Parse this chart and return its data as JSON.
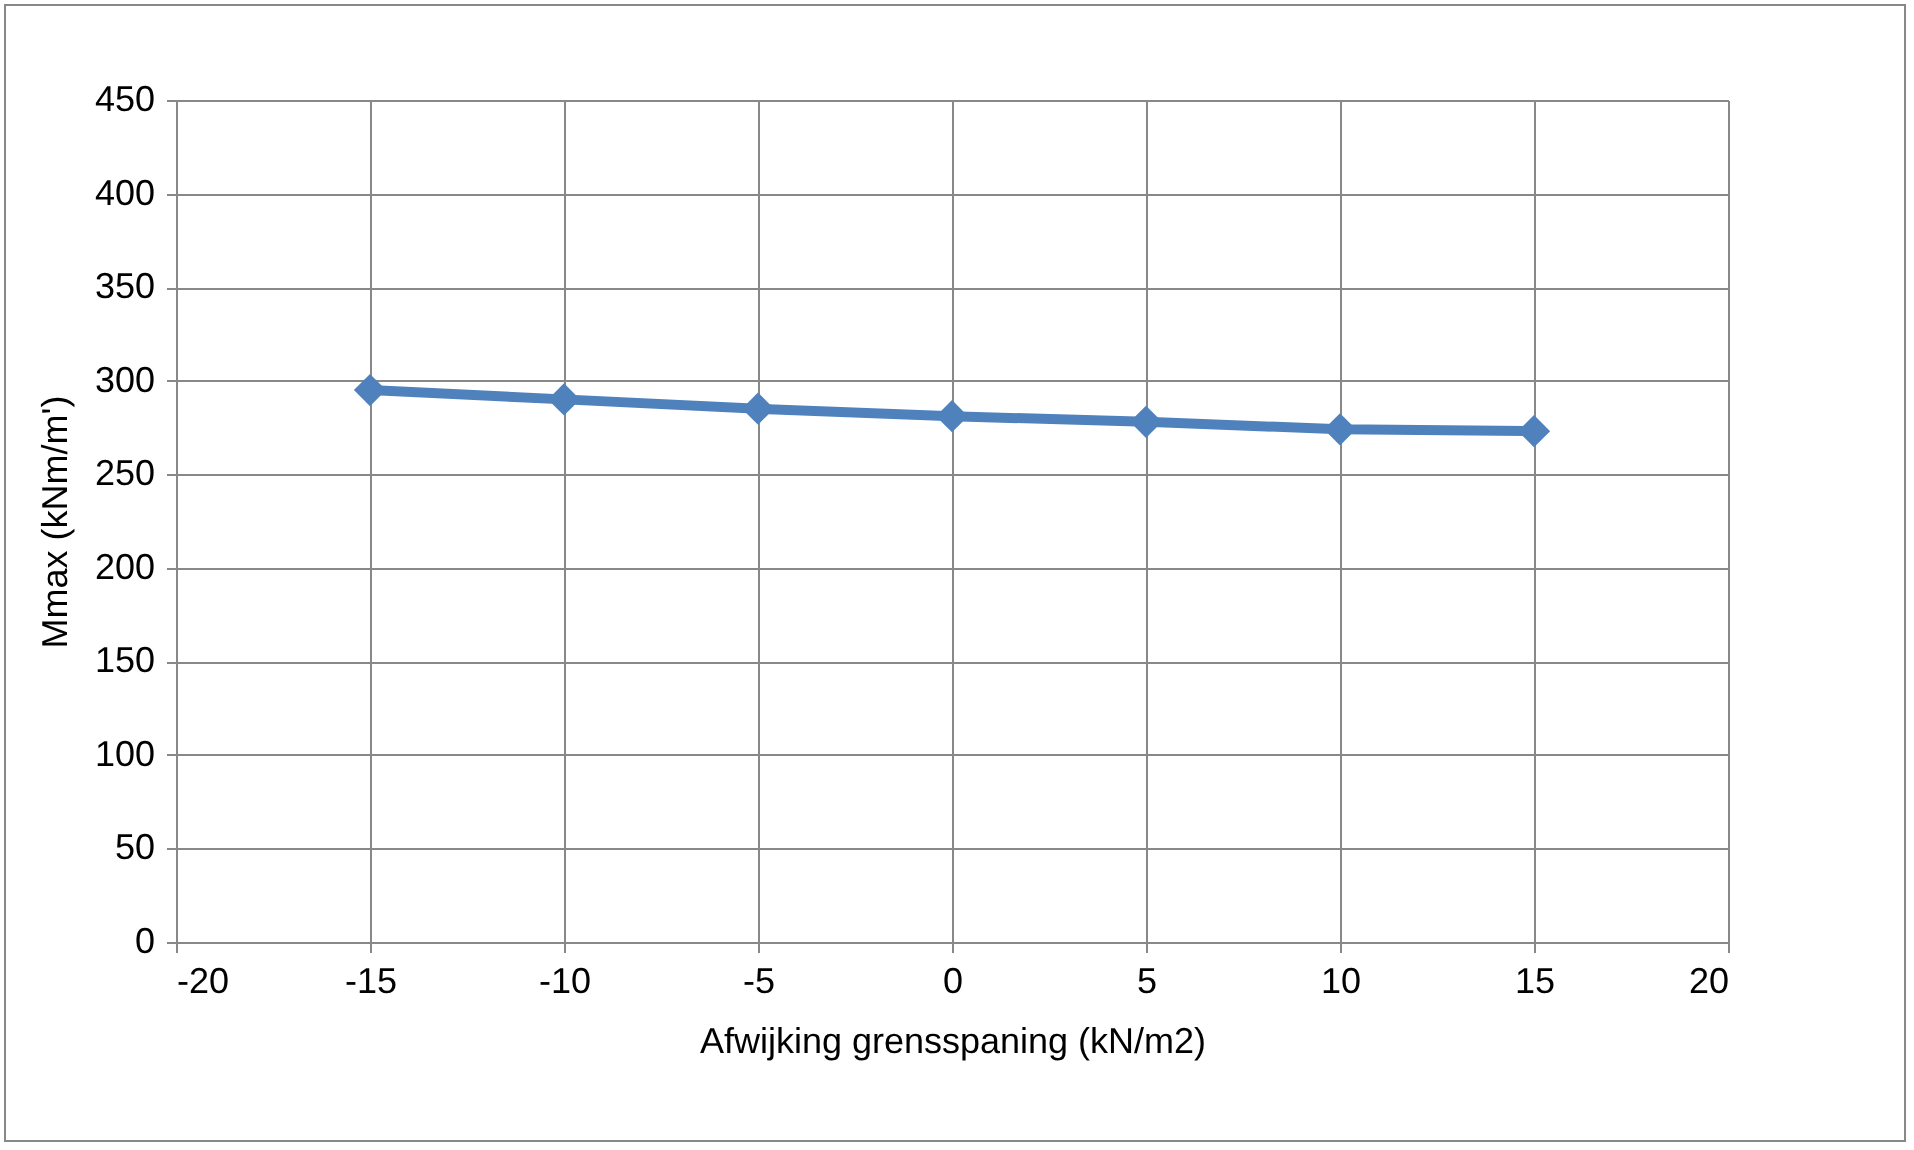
{
  "chart_data": {
    "type": "line",
    "xlabel": "Afwijking grensspaning (kN/m2)",
    "ylabel": "Mmax (kNm/m')",
    "x": [
      -15,
      -10,
      -5,
      0,
      5,
      10,
      15
    ],
    "series": [
      {
        "color": "#4f81bd",
        "values": [
          295,
          290,
          285,
          281,
          278,
          274,
          273
        ]
      }
    ],
    "xlim": [
      -20,
      20
    ],
    "xticks": [
      -20,
      -15,
      -10,
      -5,
      0,
      5,
      10,
      15,
      20
    ],
    "ylim": [
      0,
      450
    ],
    "yticks": [
      0,
      50,
      100,
      150,
      200,
      250,
      300,
      350,
      400,
      450
    ],
    "grid": true,
    "marker": "diamond",
    "line_style": "solid"
  }
}
